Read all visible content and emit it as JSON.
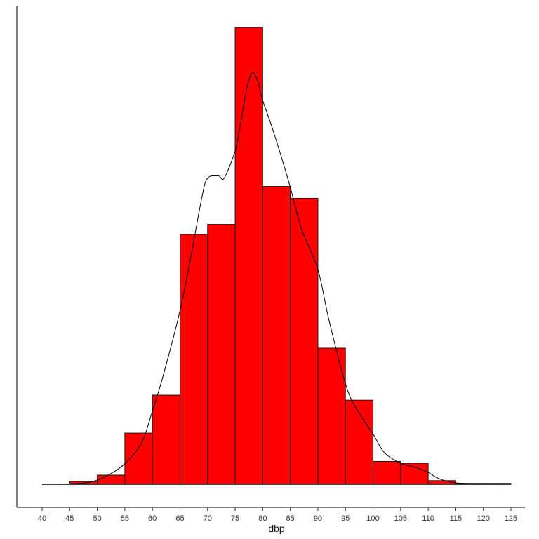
{
  "chart_data": {
    "type": "bar",
    "title": "",
    "xlabel": "dbp",
    "ylabel": "",
    "xlim": [
      40,
      125
    ],
    "ylim": [
      0,
      1
    ],
    "grid": false,
    "bar_color": "#ff0000",
    "bar_edge_color": "#1a1a1a",
    "density_line_color": "#000000",
    "x_ticks": [
      "40",
      "45",
      "50",
      "55",
      "60",
      "65",
      "70",
      "75",
      "80",
      "85",
      "90",
      "95",
      "100",
      "105",
      "110",
      "115",
      "120",
      "125"
    ],
    "bins": [
      {
        "x0": 45,
        "x1": 50,
        "value": 0.006
      },
      {
        "x0": 50,
        "x1": 55,
        "value": 0.02
      },
      {
        "x0": 55,
        "x1": 60,
        "value": 0.112
      },
      {
        "x0": 60,
        "x1": 65,
        "value": 0.195
      },
      {
        "x0": 65,
        "x1": 70,
        "value": 0.547
      },
      {
        "x0": 70,
        "x1": 75,
        "value": 0.569
      },
      {
        "x0": 75,
        "x1": 80,
        "value": 1.0
      },
      {
        "x0": 80,
        "x1": 85,
        "value": 0.652
      },
      {
        "x0": 85,
        "x1": 90,
        "value": 0.626
      },
      {
        "x0": 90,
        "x1": 95,
        "value": 0.298
      },
      {
        "x0": 95,
        "x1": 100,
        "value": 0.184
      },
      {
        "x0": 100,
        "x1": 105,
        "value": 0.05
      },
      {
        "x0": 105,
        "x1": 110,
        "value": 0.046
      },
      {
        "x0": 110,
        "x1": 115,
        "value": 0.008
      },
      {
        "x0": 115,
        "x1": 120,
        "value": 0.002
      },
      {
        "x0": 120,
        "x1": 125,
        "value": 0.002
      }
    ],
    "density": [
      [
        40,
        0.0
      ],
      [
        45,
        0.001
      ],
      [
        48,
        0.003
      ],
      [
        50,
        0.009
      ],
      [
        52,
        0.02
      ],
      [
        55,
        0.045
      ],
      [
        58,
        0.09
      ],
      [
        60,
        0.16
      ],
      [
        62,
        0.24
      ],
      [
        65,
        0.38
      ],
      [
        67,
        0.5
      ],
      [
        69,
        0.63
      ],
      [
        70,
        0.67
      ],
      [
        72,
        0.675
      ],
      [
        73,
        0.67
      ],
      [
        75,
        0.73
      ],
      [
        76,
        0.79
      ],
      [
        77,
        0.86
      ],
      [
        78,
        0.9
      ],
      [
        79,
        0.885
      ],
      [
        80,
        0.84
      ],
      [
        82,
        0.77
      ],
      [
        85,
        0.65
      ],
      [
        87,
        0.56
      ],
      [
        90,
        0.47
      ],
      [
        92,
        0.36
      ],
      [
        95,
        0.22
      ],
      [
        97,
        0.165
      ],
      [
        100,
        0.11
      ],
      [
        102,
        0.07
      ],
      [
        105,
        0.046
      ],
      [
        108,
        0.036
      ],
      [
        110,
        0.026
      ],
      [
        112,
        0.012
      ],
      [
        115,
        0.003
      ],
      [
        120,
        0.001
      ],
      [
        125,
        0.0
      ]
    ]
  }
}
